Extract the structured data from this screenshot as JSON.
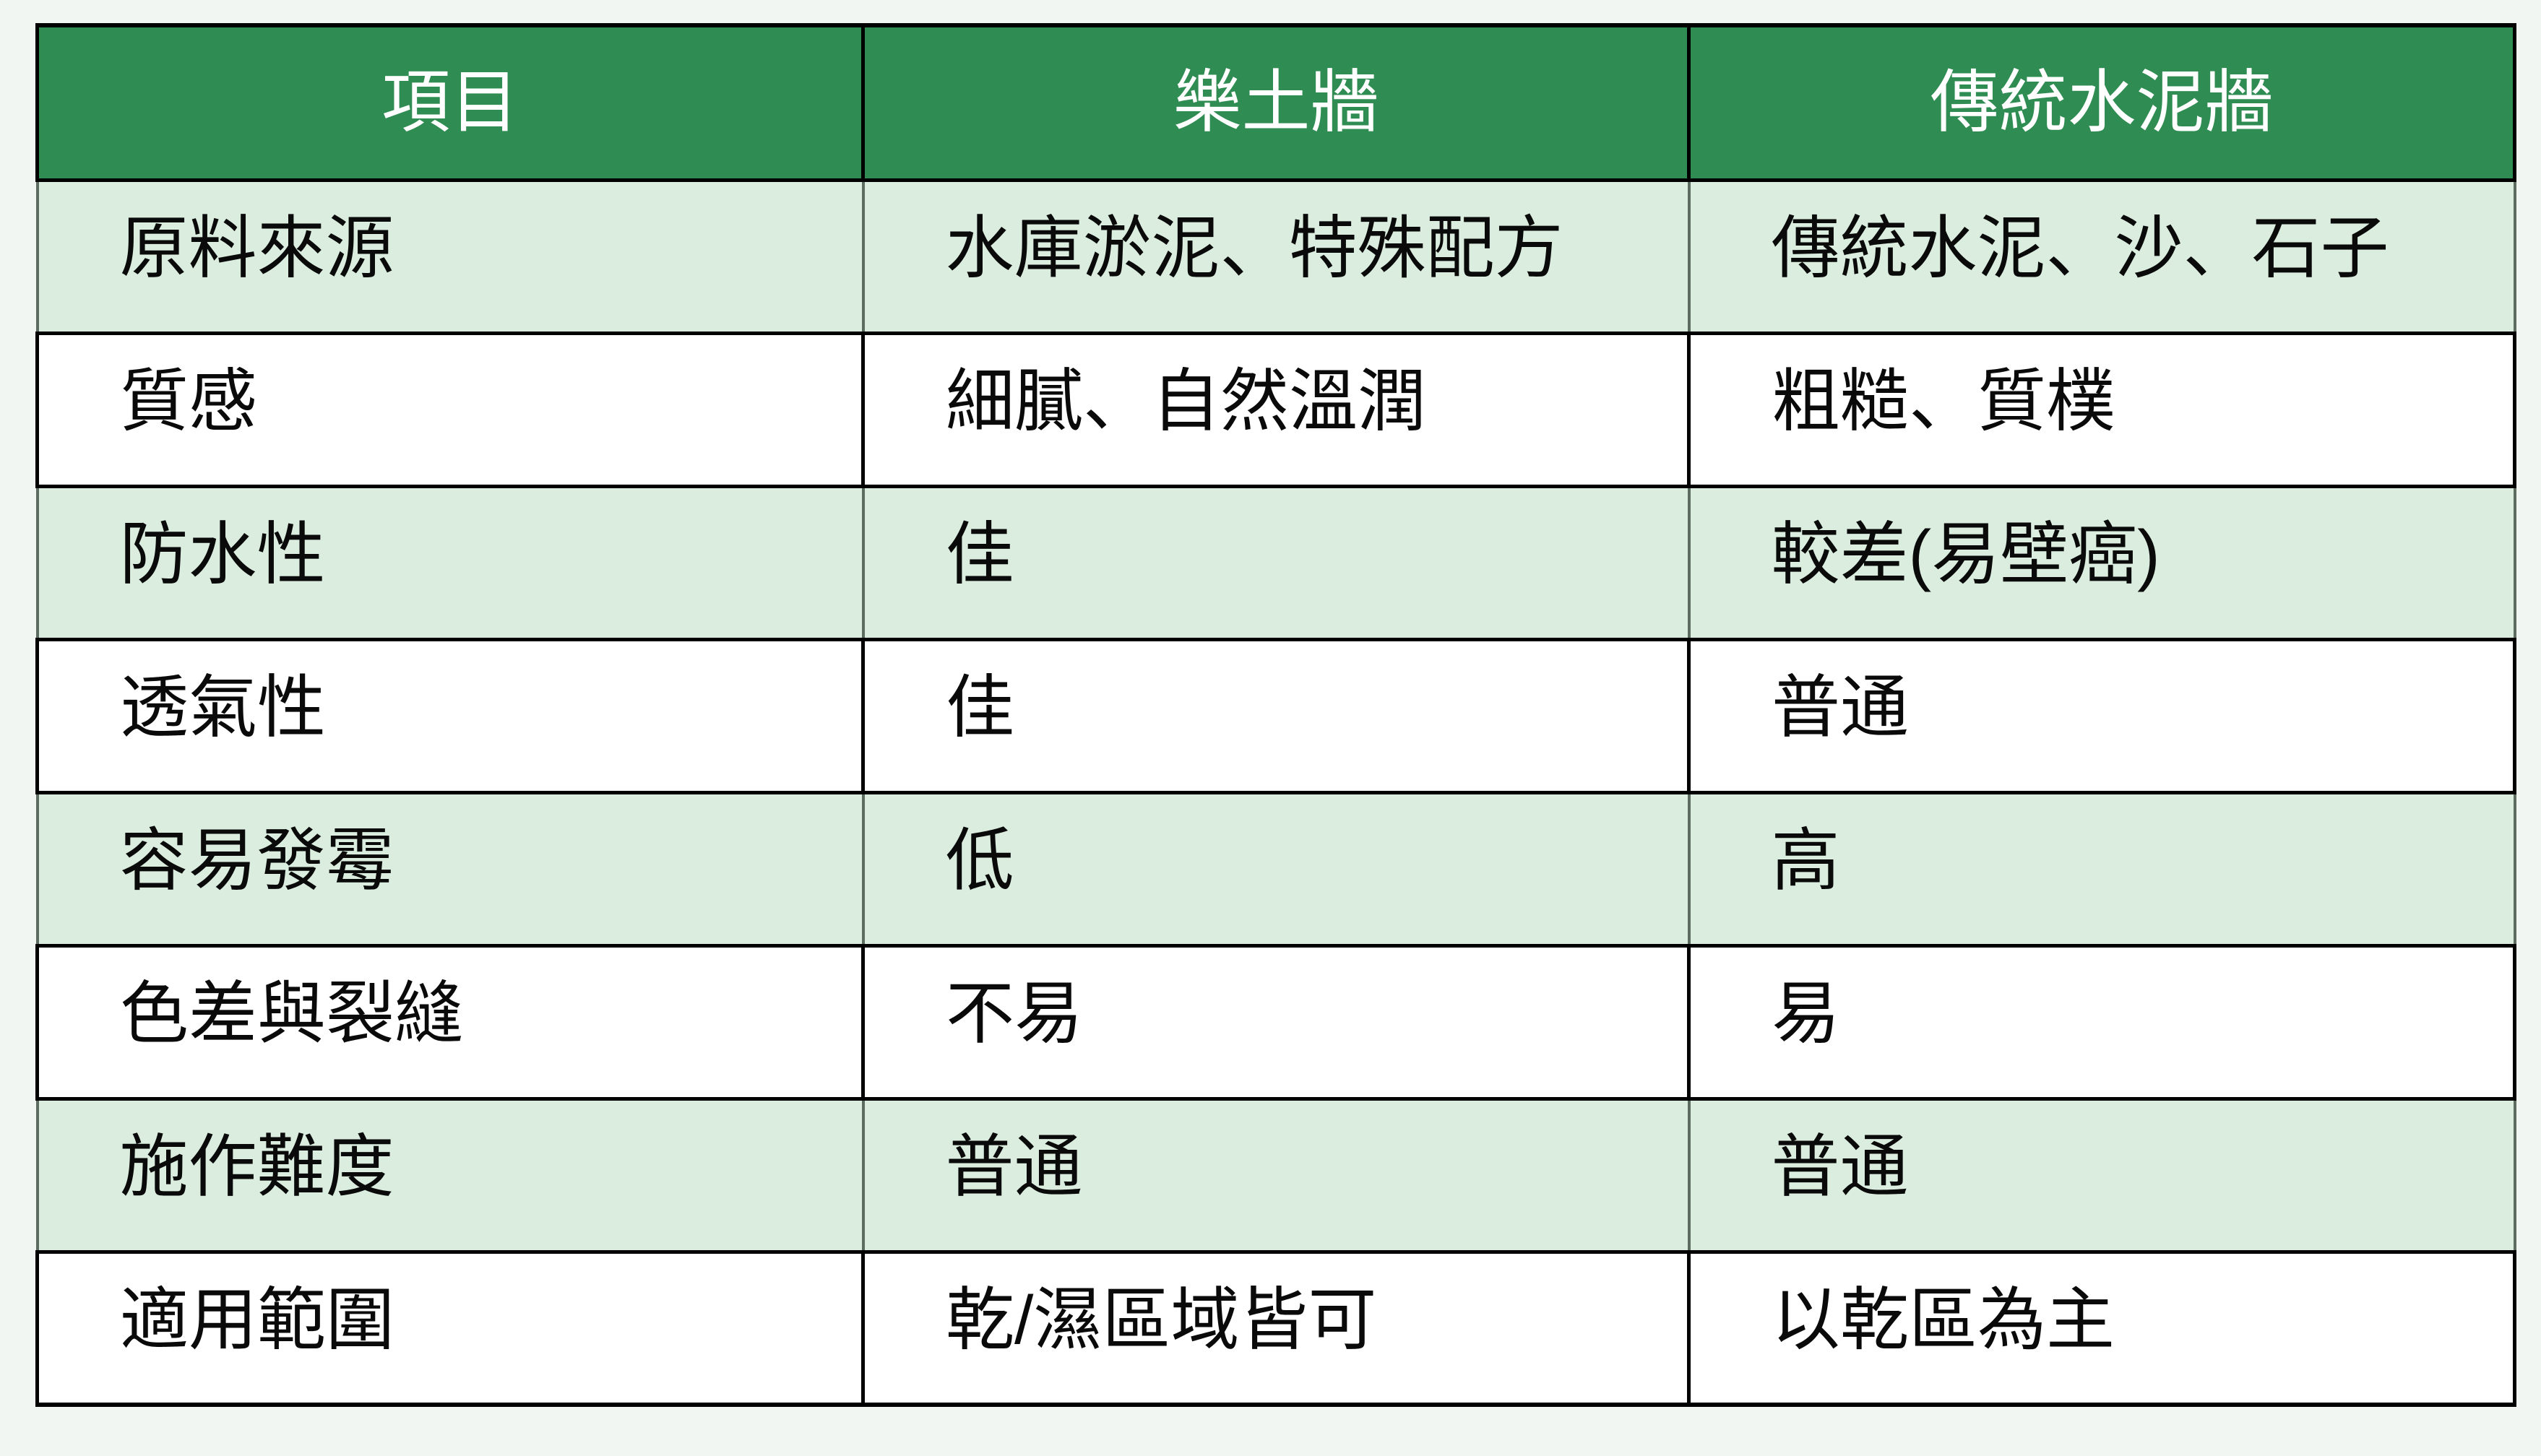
{
  "theme": {
    "page_background": "#f1f6f2",
    "header_background": "#2f8c52",
    "header_text_color": "#ffffff",
    "banded_row_background": "#daeddf",
    "plain_row_background": "#ffffff",
    "grid_border_color": "#000000",
    "banded_row_side_border_color": "#5c6c61",
    "body_text_color": "#0a0a0a"
  },
  "table": {
    "columns": [
      "項目",
      "樂土牆",
      "傳統水泥牆"
    ],
    "rows": [
      {
        "cells": [
          "原料來源",
          "水庫淤泥、特殊配方",
          "傳統水泥、沙、石子"
        ]
      },
      {
        "cells": [
          "質感",
          "細膩、自然溫潤",
          "粗糙、質樸"
        ]
      },
      {
        "cells": [
          "防水性",
          "佳",
          "較差(易壁癌)"
        ]
      },
      {
        "cells": [
          "透氣性",
          "佳",
          "普通"
        ]
      },
      {
        "cells": [
          "容易發霉",
          "低",
          "高"
        ]
      },
      {
        "cells": [
          "色差與裂縫",
          "不易",
          "易"
        ]
      },
      {
        "cells": [
          "施作難度",
          "普通",
          "普通"
        ]
      },
      {
        "cells": [
          "適用範圍",
          "乾/濕區域皆可",
          "以乾區為主"
        ]
      }
    ]
  }
}
